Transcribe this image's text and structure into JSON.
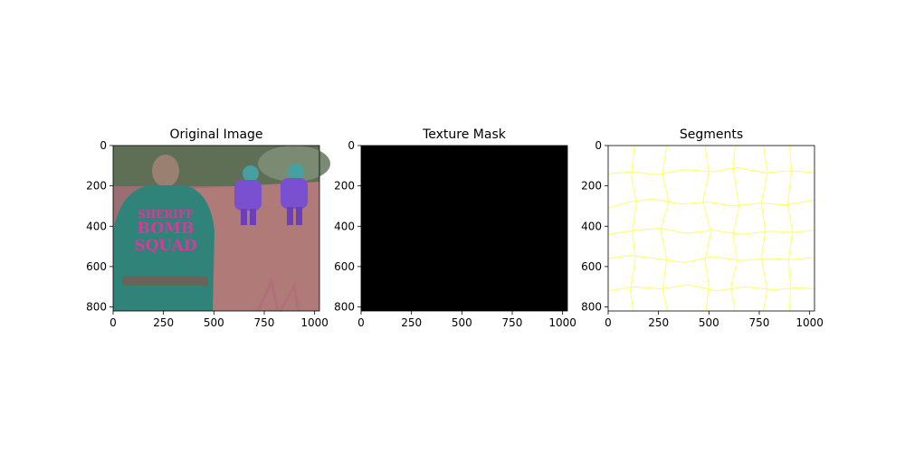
{
  "chart_data": [
    {
      "type": "image",
      "title": "Original Image",
      "image_width": 1024,
      "image_height": 820,
      "x_ticks": [
        0,
        250,
        500,
        750,
        1000
      ],
      "y_ticks": [
        0,
        200,
        400,
        600,
        800
      ],
      "content": {
        "description": "color-shifted photo: bomb squad officer seen from behind, two figures in bomb suits on a dirt road",
        "shirt_text": [
          "SHERIFF",
          "BOMB",
          "SQUAD"
        ],
        "colors": {
          "shirt": "#2f8378",
          "text": "#d63a9a",
          "ground": "#b07a78",
          "suits": "#7a4fd0",
          "foliage": "#5f6f56"
        }
      }
    },
    {
      "type": "image",
      "title": "Texture Mask",
      "image_width": 1024,
      "image_height": 820,
      "x_ticks": [
        0,
        250,
        500,
        750,
        1000
      ],
      "y_ticks": [
        0,
        200,
        400,
        600,
        800
      ],
      "content": {
        "fill": "#000000"
      }
    },
    {
      "type": "image",
      "title": "Segments",
      "image_width": 1024,
      "image_height": 820,
      "x_ticks": [
        0,
        250,
        500,
        750,
        1000
      ],
      "y_ticks": [
        0,
        200,
        400,
        600,
        800
      ],
      "content": {
        "background": "#ffffff",
        "boundary_color": "#ffff66",
        "h_boundaries": [
          [
            [
              0,
              140
            ],
            [
              120,
              130
            ],
            [
              240,
              145
            ],
            [
              380,
              120
            ],
            [
              520,
              130
            ],
            [
              640,
              110
            ],
            [
              780,
              135
            ],
            [
              900,
              125
            ],
            [
              1024,
              135
            ]
          ],
          [
            [
              0,
              310
            ],
            [
              100,
              280
            ],
            [
              220,
              265
            ],
            [
              360,
              290
            ],
            [
              500,
              280
            ],
            [
              620,
              300
            ],
            [
              760,
              285
            ],
            [
              880,
              295
            ],
            [
              1024,
              270
            ]
          ],
          [
            [
              0,
              440
            ],
            [
              130,
              420
            ],
            [
              250,
              410
            ],
            [
              390,
              435
            ],
            [
              520,
              420
            ],
            [
              660,
              440
            ],
            [
              800,
              425
            ],
            [
              920,
              430
            ],
            [
              1024,
              420
            ]
          ],
          [
            [
              0,
              560
            ],
            [
              110,
              545
            ],
            [
              240,
              560
            ],
            [
              380,
              580
            ],
            [
              520,
              550
            ],
            [
              650,
              570
            ],
            [
              790,
              560
            ],
            [
              910,
              565
            ],
            [
              1024,
              555
            ]
          ],
          [
            [
              0,
              720
            ],
            [
              120,
              700
            ],
            [
              260,
              710
            ],
            [
              400,
              690
            ],
            [
              540,
              720
            ],
            [
              680,
              700
            ],
            [
              820,
              715
            ],
            [
              940,
              705
            ],
            [
              1024,
              710
            ]
          ]
        ],
        "v_boundaries": [
          [
            [
              130,
              0
            ],
            [
              115,
              150
            ],
            [
              140,
              290
            ],
            [
              120,
              430
            ],
            [
              135,
              560
            ],
            [
              110,
              720
            ],
            [
              125,
              820
            ]
          ],
          [
            [
              290,
              0
            ],
            [
              270,
              140
            ],
            [
              300,
              280
            ],
            [
              260,
              420
            ],
            [
              290,
              560
            ],
            [
              270,
              720
            ],
            [
              295,
              820
            ]
          ],
          [
            [
              480,
              0
            ],
            [
              500,
              130
            ],
            [
              470,
              280
            ],
            [
              510,
              430
            ],
            [
              480,
              570
            ],
            [
              500,
              700
            ],
            [
              485,
              820
            ]
          ],
          [
            [
              630,
              0
            ],
            [
              620,
              110
            ],
            [
              650,
              300
            ],
            [
              620,
              440
            ],
            [
              640,
              570
            ],
            [
              610,
              700
            ],
            [
              630,
              820
            ]
          ],
          [
            [
              770,
              0
            ],
            [
              790,
              135
            ],
            [
              760,
              285
            ],
            [
              780,
              425
            ],
            [
              760,
              560
            ],
            [
              790,
              715
            ],
            [
              770,
              820
            ]
          ],
          [
            [
              900,
              0
            ],
            [
              910,
              125
            ],
            [
              890,
              295
            ],
            [
              915,
              430
            ],
            [
              895,
              565
            ],
            [
              905,
              705
            ],
            [
              900,
              820
            ]
          ]
        ]
      }
    }
  ]
}
